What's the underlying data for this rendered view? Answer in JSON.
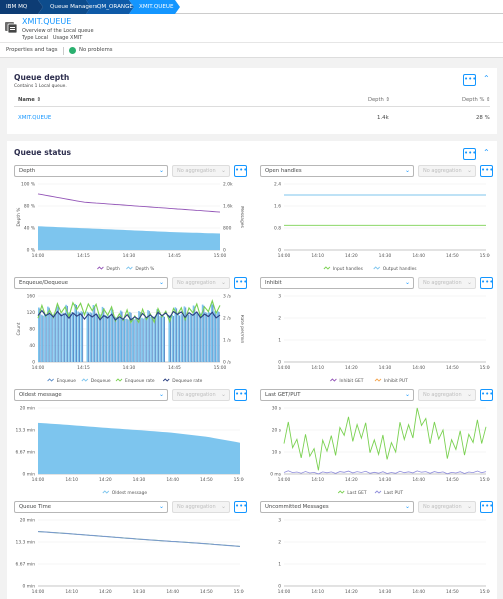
{
  "breadcrumb": [
    "IBM MQ",
    "Queue Managers",
    "QM_ORANGE",
    "XMIT.QUEUE"
  ],
  "entity": {
    "name": "XMIT.QUEUE",
    "subtitle": "Overview of the Local queue",
    "type_label": "Type",
    "type_value": "Local",
    "usage_label": "Usage",
    "usage_value": "XMIT"
  },
  "properties": {
    "label": "Properties and tags",
    "status": "No problems"
  },
  "queue_depth": {
    "title": "Queue depth",
    "subtitle": "Contains 1 Local queue.",
    "columns": [
      "Name",
      "Depth",
      "Depth %"
    ],
    "rows": [
      {
        "name": "XMIT.QUEUE",
        "depth": "1.4k",
        "depth_pct": "28 %"
      }
    ]
  },
  "queue_status": {
    "title": "Queue status"
  },
  "aggregation_placeholder": "No aggregation",
  "more_icon": "•••",
  "colors": {
    "accent": "#1496ff",
    "crumb_dark": "#0d3c74",
    "crumb": "#0e5aa8",
    "purple": "#9355b7",
    "cyan": "#7dc5ee",
    "green": "#7ad151",
    "navy": "#2a3e80",
    "orange": "#f4a44e"
  },
  "chart_data": [
    {
      "selector": "Depth",
      "type": "area",
      "x": [
        "14:00",
        "14:15",
        "14:30",
        "14:45",
        "15:00"
      ],
      "y_ticks_left": [
        "100 %",
        "80 %",
        "40 %",
        "0 %"
      ],
      "y_ticks_right": [
        "2.0k",
        "1.6k",
        "800",
        "0"
      ],
      "ylabel_left": "Depth %",
      "ylabel_right": "Messages",
      "series": [
        {
          "name": "Depth",
          "values": [
            1700,
            1450,
            1350,
            1250,
            1150
          ]
        },
        {
          "name": "Depth %",
          "values": [
            36,
            33,
            30,
            27,
            25
          ]
        }
      ]
    },
    {
      "selector": "Open handles",
      "type": "line",
      "x": [
        "14:00",
        "14:10",
        "14:20",
        "14:30",
        "14:40",
        "14:50",
        "15:00"
      ],
      "y_ticks_left": [
        "2.4",
        "1.6",
        "0.8",
        "0"
      ],
      "series": [
        {
          "name": "Input handles",
          "values": [
            0.9,
            0.9,
            0.9,
            0.9,
            0.9,
            0.9,
            0.9
          ]
        },
        {
          "name": "Output handles",
          "values": [
            2,
            2,
            2,
            2,
            2,
            2,
            2
          ]
        }
      ]
    },
    {
      "selector": "Enqueue/Dequeue",
      "type": "bar",
      "x": [
        "14:00",
        "14:15",
        "14:30",
        "14:45",
        "15:00"
      ],
      "y_ticks_left": [
        "160",
        "120",
        "80",
        "40",
        "0"
      ],
      "y_ticks_right": [
        "3 /s",
        "2 /s",
        "1 /s",
        "0 /s"
      ],
      "ylabel_left": "Count",
      "ylabel_right": "Rate per/min",
      "series": [
        {
          "name": "Enqueue",
          "values": [
            120,
            130,
            110,
            120,
            130
          ]
        },
        {
          "name": "Dequeue",
          "values": [
            120,
            130,
            110,
            120,
            130
          ]
        },
        {
          "name": "Enqueue rate",
          "values": [
            2.2,
            2.5,
            2.0,
            2.2,
            2.5
          ]
        },
        {
          "name": "Dequeue rate",
          "values": [
            2.2,
            2.1,
            2.0,
            2.2,
            2.1
          ]
        }
      ]
    },
    {
      "selector": "Inhibit",
      "type": "line",
      "x": [
        "14:00",
        "14:10",
        "14:20",
        "14:30",
        "14:40",
        "14:50",
        "15:00"
      ],
      "y_ticks_left": [
        "3",
        "2",
        "1",
        "0"
      ],
      "series": [
        {
          "name": "Inhibit GET",
          "values": [
            0,
            0,
            0,
            0,
            0,
            0,
            0
          ]
        },
        {
          "name": "Inhibit PUT",
          "values": [
            0,
            0,
            0,
            0,
            0,
            0,
            0
          ]
        }
      ]
    },
    {
      "selector": "Oldest message",
      "type": "area",
      "x": [
        "14:00",
        "14:10",
        "14:20",
        "14:30",
        "14:40",
        "14:50",
        "15:00"
      ],
      "y_ticks_left": [
        "20 min",
        "13.3 min",
        "6.67 min",
        "0 min"
      ],
      "series": [
        {
          "name": "Oldest message",
          "values": [
            15.5,
            14.8,
            14.0,
            13.3,
            12.5,
            11.3,
            9.5
          ]
        }
      ]
    },
    {
      "selector": "Last GET/PUT",
      "type": "line",
      "x": [
        "14:00",
        "14:10",
        "14:20",
        "14:30",
        "14:40",
        "14:50",
        "15:00"
      ],
      "y_ticks_left": [
        "30 s",
        "20 s",
        "10 s",
        "0 ms"
      ],
      "series": [
        {
          "name": "Last GET",
          "values": [
            18,
            8,
            22,
            10,
            25,
            12,
            20
          ]
        },
        {
          "name": "Last PUT",
          "values": [
            1,
            0.5,
            1,
            0.5,
            1,
            0.5,
            1
          ]
        }
      ]
    },
    {
      "selector": "Queue Time",
      "type": "line",
      "x": [
        "14:00",
        "14:10",
        "14:20",
        "14:30",
        "14:40",
        "14:50",
        "15:00"
      ],
      "y_ticks_left": [
        "20 min",
        "13.3 min",
        "6.67 min",
        "0 min"
      ],
      "series": [
        {
          "name": "Short",
          "values": [
            16.5,
            15.8,
            15.0,
            14.2,
            13.5,
            12.8,
            12.0
          ]
        },
        {
          "name": "Long",
          "values": [
            16.5,
            15.8,
            15.0,
            14.2,
            13.5,
            12.8,
            12.0
          ]
        }
      ]
    },
    {
      "selector": "Uncommitted Messages",
      "type": "line",
      "x": [
        "14:00",
        "14:10",
        "14:20",
        "14:30",
        "14:40",
        "14:50",
        "15:00"
      ],
      "y_ticks_left": [
        "3",
        "2",
        "1",
        "0"
      ],
      "series": [
        {
          "name": "Uncommitted Messages",
          "values": [
            0,
            0,
            0,
            0,
            0,
            0,
            0
          ]
        }
      ]
    }
  ]
}
